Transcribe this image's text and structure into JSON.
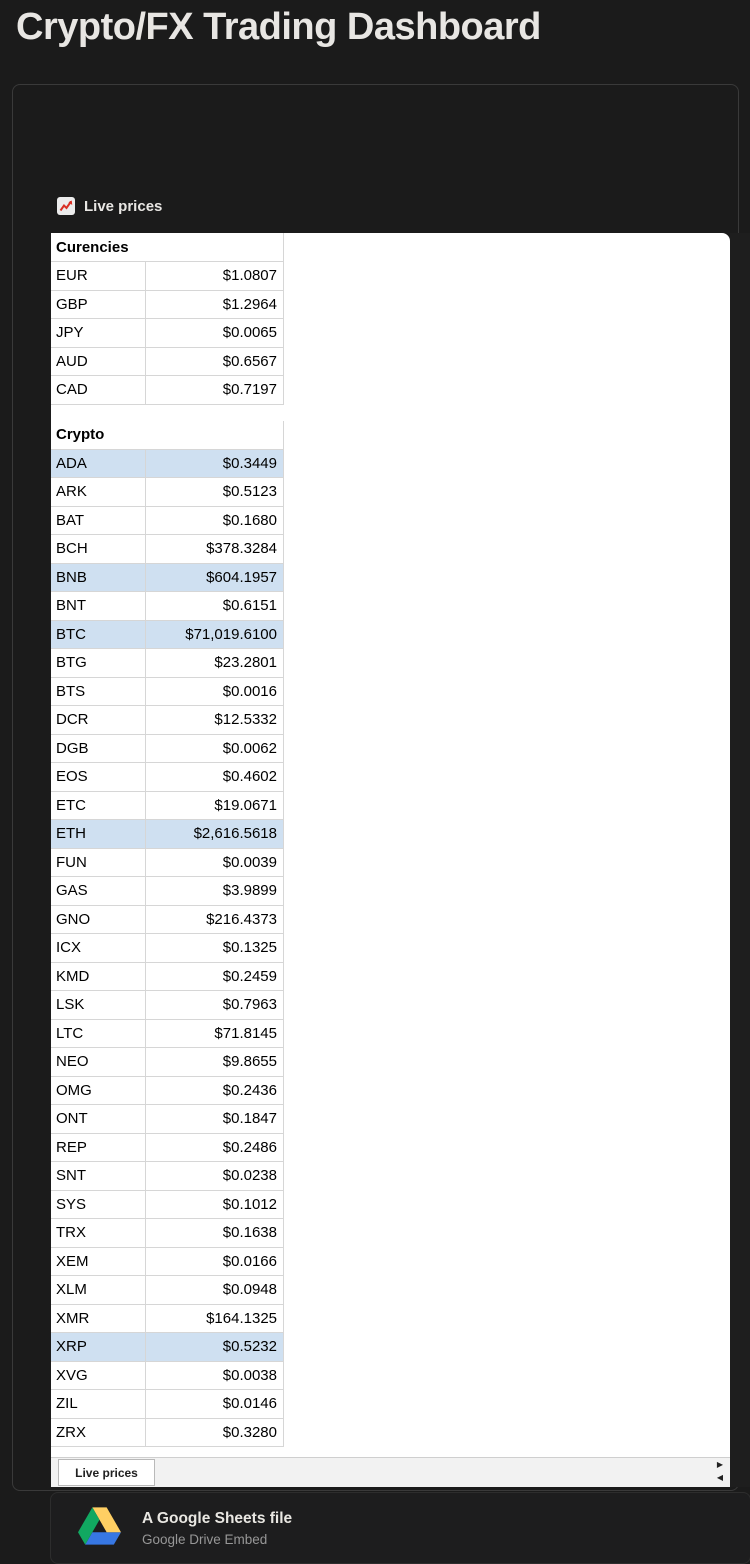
{
  "page": {
    "title": "Crypto/FX Trading Dashboard"
  },
  "widget": {
    "label": "Live prices",
    "icon": "chart-increasing-icon"
  },
  "colors": {
    "highlight": "#cfe0f1",
    "chart_icon_line": "#d93025",
    "drive_green": "#11A861",
    "drive_yellow": "#FFCF63",
    "drive_blue": "#3777E3"
  },
  "sheet": {
    "highlight_color": "#cfe0f1",
    "tab_label": "Live prices",
    "scroll_right_glyph": "▶",
    "scroll_left_glyph": "◀",
    "sections": [
      {
        "header": "Curencies",
        "rows": [
          {
            "symbol": "EUR",
            "price": "$1.0807",
            "highlight": false
          },
          {
            "symbol": "GBP",
            "price": "$1.2964",
            "highlight": false
          },
          {
            "symbol": "JPY",
            "price": "$0.0065",
            "highlight": false
          },
          {
            "symbol": "AUD",
            "price": "$0.6567",
            "highlight": false
          },
          {
            "symbol": "CAD",
            "price": "$0.7197",
            "highlight": false
          }
        ]
      },
      {
        "header": "Crypto",
        "rows": [
          {
            "symbol": "ADA",
            "price": "$0.3449",
            "highlight": true
          },
          {
            "symbol": "ARK",
            "price": "$0.5123",
            "highlight": false
          },
          {
            "symbol": "BAT",
            "price": "$0.1680",
            "highlight": false
          },
          {
            "symbol": "BCH",
            "price": "$378.3284",
            "highlight": false
          },
          {
            "symbol": "BNB",
            "price": "$604.1957",
            "highlight": true
          },
          {
            "symbol": "BNT",
            "price": "$0.6151",
            "highlight": false
          },
          {
            "symbol": "BTC",
            "price": "$71,019.6100",
            "highlight": true
          },
          {
            "symbol": "BTG",
            "price": "$23.2801",
            "highlight": false
          },
          {
            "symbol": "BTS",
            "price": "$0.0016",
            "highlight": false
          },
          {
            "symbol": "DCR",
            "price": "$12.5332",
            "highlight": false
          },
          {
            "symbol": "DGB",
            "price": "$0.0062",
            "highlight": false
          },
          {
            "symbol": "EOS",
            "price": "$0.4602",
            "highlight": false
          },
          {
            "symbol": "ETC",
            "price": "$19.0671",
            "highlight": false
          },
          {
            "symbol": "ETH",
            "price": "$2,616.5618",
            "highlight": true
          },
          {
            "symbol": "FUN",
            "price": "$0.0039",
            "highlight": false
          },
          {
            "symbol": "GAS",
            "price": "$3.9899",
            "highlight": false
          },
          {
            "symbol": "GNO",
            "price": "$216.4373",
            "highlight": false
          },
          {
            "symbol": "ICX",
            "price": "$0.1325",
            "highlight": false
          },
          {
            "symbol": "KMD",
            "price": "$0.2459",
            "highlight": false
          },
          {
            "symbol": "LSK",
            "price": "$0.7963",
            "highlight": false
          },
          {
            "symbol": "LTC",
            "price": "$71.8145",
            "highlight": false
          },
          {
            "symbol": "NEO",
            "price": "$9.8655",
            "highlight": false
          },
          {
            "symbol": "OMG",
            "price": "$0.2436",
            "highlight": false
          },
          {
            "symbol": "ONT",
            "price": "$0.1847",
            "highlight": false
          },
          {
            "symbol": "REP",
            "price": "$0.2486",
            "highlight": false
          },
          {
            "symbol": "SNT",
            "price": "$0.0238",
            "highlight": false
          },
          {
            "symbol": "SYS",
            "price": "$0.1012",
            "highlight": false
          },
          {
            "symbol": "TRX",
            "price": "$0.1638",
            "highlight": false
          },
          {
            "symbol": "XEM",
            "price": "$0.0166",
            "highlight": false
          },
          {
            "symbol": "XLM",
            "price": "$0.0948",
            "highlight": false
          },
          {
            "symbol": "XMR",
            "price": "$164.1325",
            "highlight": false
          },
          {
            "symbol": "XRP",
            "price": "$0.5232",
            "highlight": true
          },
          {
            "symbol": "XVG",
            "price": "$0.0038",
            "highlight": false
          },
          {
            "symbol": "ZIL",
            "price": "$0.0146",
            "highlight": false
          },
          {
            "symbol": "ZRX",
            "price": "$0.3280",
            "highlight": false
          }
        ]
      }
    ]
  },
  "footer": {
    "title": "A Google Sheets file",
    "subtitle": "Google Drive Embed",
    "icon": "google-drive-icon"
  }
}
